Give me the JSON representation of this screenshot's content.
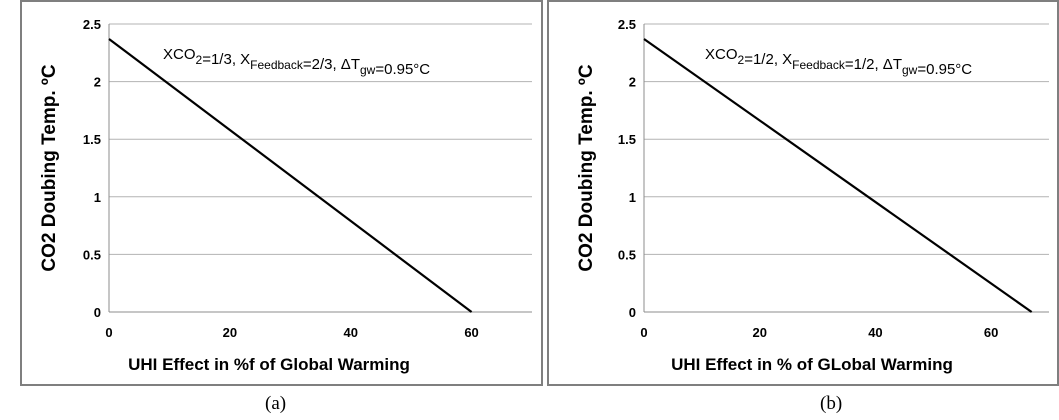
{
  "chart_data": [
    {
      "type": "line",
      "caption": "(a)",
      "xlabel": "UHI Effect in %f of Global Warming",
      "ylabel": "CO2 Doubing Temp. ºC",
      "xlim": [
        0,
        70
      ],
      "ylim": [
        0,
        2.5
      ],
      "xticks": [
        "0",
        "20",
        "40",
        "60"
      ],
      "xtick_values": [
        0,
        20,
        40,
        60
      ],
      "yticks": [
        "0",
        "0.5",
        "1",
        "1.5",
        "2",
        "2.5"
      ],
      "ytick_values": [
        0,
        0.5,
        1,
        1.5,
        2,
        2.5
      ],
      "grid": "horizontal",
      "annotation": {
        "xco2": "XCO",
        "xco2_sub": "2",
        "xco2_val": "=1/3,  X",
        "fb_sub": "Feedback",
        "fb_val": "=2/3, ΔT",
        "gw_sub": "gw",
        "gw_val": "=0.95°C"
      },
      "series": [
        {
          "x": [
            0,
            60
          ],
          "y": [
            2.37,
            0
          ],
          "color": "#000000"
        }
      ]
    },
    {
      "type": "line",
      "caption": "(b)",
      "xlabel": "UHI Effect in % of GLobal Warming",
      "ylabel": "CO2 Doubing Temp. ºC",
      "xlim": [
        0,
        70
      ],
      "ylim": [
        0,
        2.5
      ],
      "xticks": [
        "0",
        "20",
        "40",
        "60"
      ],
      "xtick_values": [
        0,
        20,
        40,
        60
      ],
      "yticks": [
        "0",
        "0.5",
        "1",
        "1.5",
        "2",
        "2.5"
      ],
      "ytick_values": [
        0,
        0.5,
        1,
        1.5,
        2,
        2.5
      ],
      "grid": "horizontal",
      "annotation": {
        "xco2": "XCO",
        "xco2_sub": "2",
        "xco2_val": "=1/2, X",
        "fb_sub": "Feedback",
        "fb_val": "=1/2, ΔT",
        "gw_sub": "gw",
        "gw_val": "=0.95°C"
      },
      "series": [
        {
          "x": [
            0,
            67
          ],
          "y": [
            2.37,
            0
          ],
          "color": "#000000"
        }
      ]
    }
  ]
}
